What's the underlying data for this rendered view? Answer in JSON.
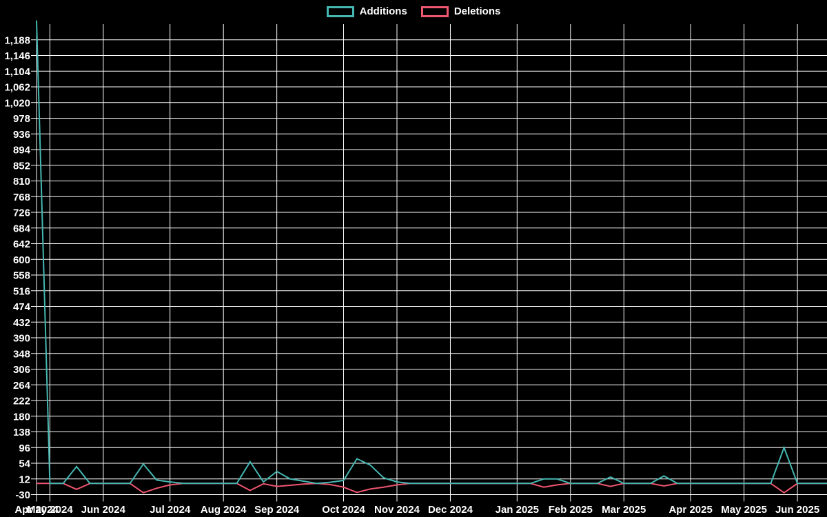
{
  "page": {
    "background": "#000000",
    "text_color": "#ffffff",
    "grid_color": "#ffffff"
  },
  "legend": {
    "items": [
      {
        "label": "Additions",
        "color": "#45b8b2"
      },
      {
        "label": "Deletions",
        "color": "#ef5670"
      }
    ]
  },
  "chart_data": {
    "type": "line",
    "title": "",
    "xlabel": "",
    "ylabel": "",
    "x_unit": "week",
    "legend_position": "top-center",
    "grid": true,
    "y_axis": {
      "plot_min": -30,
      "plot_max": 1230,
      "tick_step": 42
    },
    "y_ticks": [
      -30,
      12,
      54,
      96,
      138,
      180,
      222,
      264,
      306,
      348,
      390,
      432,
      474,
      516,
      558,
      600,
      642,
      684,
      726,
      768,
      810,
      852,
      894,
      936,
      978,
      1020,
      1062,
      1104,
      1146,
      1188
    ],
    "x_ticks": [
      {
        "label": "Apr 2024",
        "index": 0
      },
      {
        "label": "May 2024",
        "index": 1
      },
      {
        "label": "Jun 2024",
        "index": 5
      },
      {
        "label": "Jul 2024",
        "index": 10
      },
      {
        "label": "Aug 2024",
        "index": 14
      },
      {
        "label": "Sep 2024",
        "index": 18
      },
      {
        "label": "Oct 2024",
        "index": 23
      },
      {
        "label": "Nov 2024",
        "index": 27
      },
      {
        "label": "Dec 2024",
        "index": 31
      },
      {
        "label": "Jan 2025",
        "index": 36
      },
      {
        "label": "Feb 2025",
        "index": 40
      },
      {
        "label": "Mar 2025",
        "index": 44
      },
      {
        "label": "Apr 2025",
        "index": 49
      },
      {
        "label": "May 2025",
        "index": 53
      },
      {
        "label": "Jun 2025",
        "index": 57
      }
    ],
    "series": [
      {
        "name": "Additions",
        "color": "#45b8b2",
        "values": [
          1240,
          0,
          0,
          45,
          0,
          0,
          0,
          0,
          52,
          9,
          4,
          0,
          0,
          0,
          0,
          0,
          58,
          4,
          32,
          12,
          6,
          0,
          3,
          8,
          66,
          49,
          15,
          4,
          0,
          0,
          0,
          0,
          0,
          0,
          0,
          0,
          0,
          0,
          12,
          12,
          0,
          0,
          0,
          17,
          0,
          0,
          0,
          20,
          0,
          0,
          0,
          0,
          0,
          0,
          0,
          0,
          96,
          0,
          0,
          0,
          0
        ]
      },
      {
        "name": "Deletions",
        "color": "#ef5670",
        "values": [
          0,
          0,
          0,
          -16,
          0,
          0,
          0,
          0,
          -25,
          -13,
          -4,
          0,
          0,
          0,
          0,
          0,
          -19,
          -1,
          -8,
          -5,
          -2,
          0,
          -3,
          -10,
          -24,
          -15,
          -10,
          -4,
          0,
          0,
          0,
          0,
          0,
          0,
          0,
          0,
          0,
          0,
          -10,
          -4,
          0,
          0,
          0,
          -8,
          0,
          0,
          0,
          -7,
          0,
          0,
          0,
          0,
          0,
          0,
          0,
          0,
          -25,
          0,
          0,
          0,
          0
        ]
      }
    ]
  }
}
